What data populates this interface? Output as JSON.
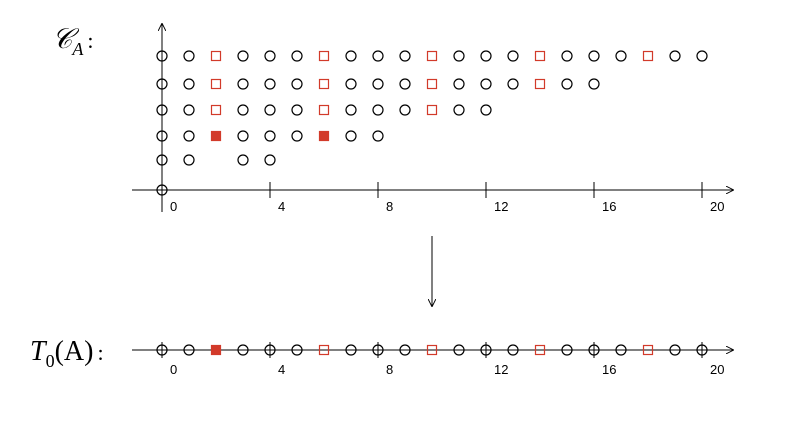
{
  "top_plot": {
    "label": {
      "symbol": "𝒞",
      "subscript": "A",
      "colon": ":"
    },
    "xticks": [
      0,
      4,
      8,
      12,
      16,
      20
    ],
    "rows": [
      {
        "circles": [
          0
        ]
      },
      {
        "circles": [
          0,
          1,
          3,
          4
        ]
      },
      {
        "circles": [
          0,
          1,
          3,
          4,
          5,
          7,
          8
        ],
        "filled_squares": [
          2,
          6
        ]
      },
      {
        "circles": [
          0,
          1,
          3,
          4,
          5,
          7,
          8,
          9,
          11,
          12
        ],
        "open_squares": [
          2,
          6,
          10
        ]
      },
      {
        "circles": [
          0,
          1,
          3,
          4,
          5,
          7,
          8,
          9,
          11,
          12,
          13,
          15,
          16
        ],
        "open_squares": [
          2,
          6,
          10,
          14
        ]
      },
      {
        "circles": [
          0,
          1,
          3,
          4,
          5,
          7,
          8,
          9,
          11,
          12,
          13,
          15,
          16,
          17,
          19,
          20
        ],
        "open_squares": [
          2,
          6,
          10,
          14,
          18
        ]
      }
    ]
  },
  "bottom_plot": {
    "label": {
      "symbol": "T",
      "subscript": "0",
      "rest": "(A)",
      "colon": ":"
    },
    "xticks": [
      0,
      4,
      8,
      12,
      16,
      20
    ],
    "circles": [
      0,
      1,
      3,
      4,
      5,
      7,
      8,
      9,
      11,
      12,
      13,
      15,
      16,
      17,
      19,
      20
    ],
    "open_squares": [
      6,
      10,
      14,
      18
    ],
    "filled_squares": [
      2
    ]
  }
}
